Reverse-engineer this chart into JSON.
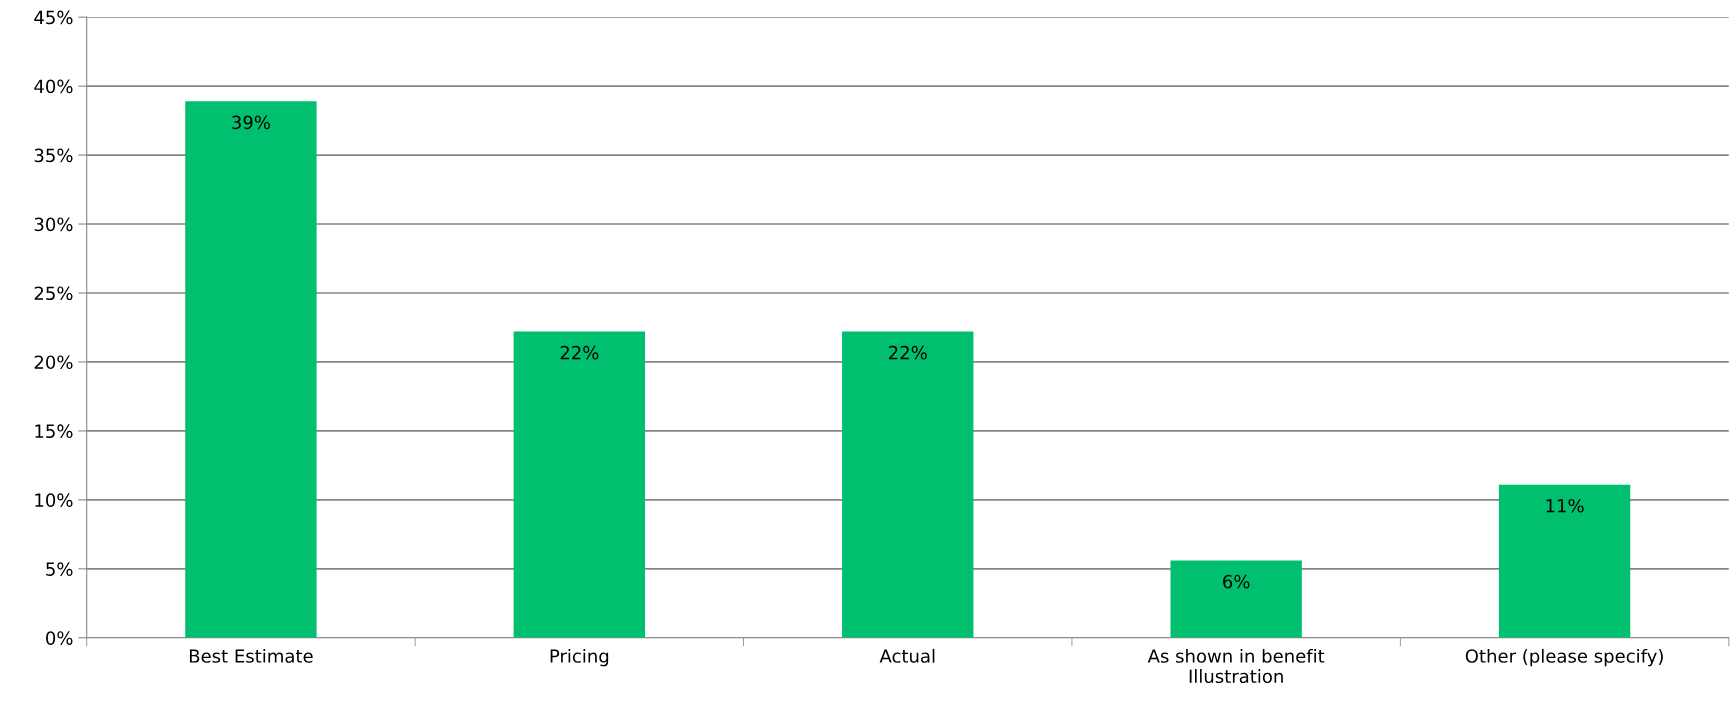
{
  "chart_data": {
    "type": "bar",
    "categories": [
      "Best Estimate",
      "Pricing",
      "Actual",
      "As shown in benefit\nIllustration",
      "Other (please specify)"
    ],
    "values": [
      38.9,
      22.2,
      22.2,
      5.6,
      11.1
    ],
    "value_labels": [
      "39%",
      "22%",
      "22%",
      "6%",
      "11%"
    ],
    "color": "#00bf6f",
    "ylim": [
      0,
      45
    ],
    "yticks": [
      {
        "value": 0,
        "label": "0%"
      },
      {
        "value": 5,
        "label": "5%"
      },
      {
        "value": 10,
        "label": "10%"
      },
      {
        "value": 15,
        "label": "15%"
      },
      {
        "value": 20,
        "label": "20%"
      },
      {
        "value": 25,
        "label": "25%"
      },
      {
        "value": 30,
        "label": "30%"
      },
      {
        "value": 35,
        "label": "35%"
      },
      {
        "value": 40,
        "label": "40%"
      },
      {
        "value": 45,
        "label": "45%"
      }
    ],
    "grid": "y",
    "legend": false
  }
}
